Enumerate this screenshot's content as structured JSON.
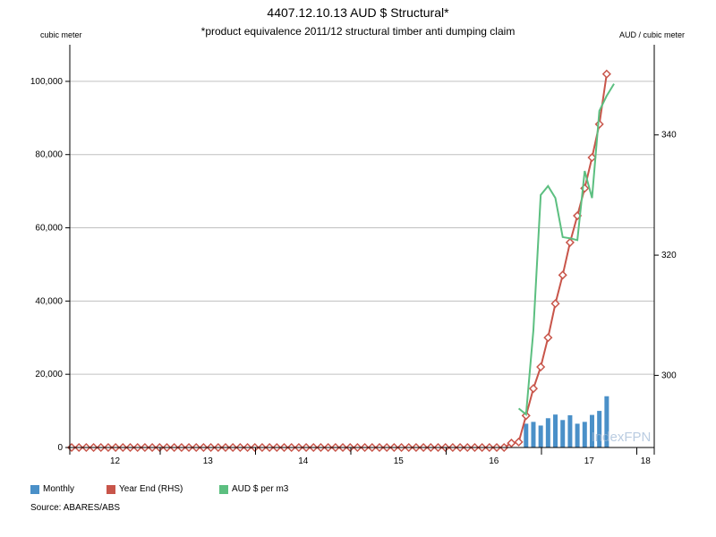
{
  "chart_data": {
    "type": "bar+line",
    "title": "4407.12.10.13 AUD $ Structural*",
    "subtitle": "*product equivalence 2011/12 structural timber anti dumping claim",
    "left_axis_label": "cubic meter",
    "right_axis_label": "AUD / cubic meter",
    "ylim_left": [
      0,
      110000
    ],
    "ylim_right": [
      288,
      355
    ],
    "left_ticks": [
      {
        "value": 0,
        "label": "0"
      },
      {
        "value": 20000,
        "label": "20,000"
      },
      {
        "value": 40000,
        "label": "40,000"
      },
      {
        "value": 60000,
        "label": "60,000"
      },
      {
        "value": 80000,
        "label": "80,000"
      },
      {
        "value": 100000,
        "label": "100,000"
      }
    ],
    "right_ticks": [
      {
        "value": 300,
        "label": "300"
      },
      {
        "value": 320,
        "label": "320"
      },
      {
        "value": 340,
        "label": "340"
      }
    ],
    "x_year_labels": [
      "12",
      "13",
      "14",
      "15",
      "16",
      "17",
      "18"
    ],
    "x_range": [
      "2011-07",
      "2018-02"
    ],
    "grid": "horizontal",
    "watermark": "IndexFPN",
    "series": [
      {
        "name": "Monthly",
        "type": "bar",
        "axis": "left",
        "color": "#4a90c8",
        "points": [
          [
            "2016-09",
            6500
          ],
          [
            "2016-10",
            7000
          ],
          [
            "2016-11",
            6000
          ],
          [
            "2016-12",
            8000
          ],
          [
            "2017-01",
            9000
          ],
          [
            "2017-02",
            7500
          ],
          [
            "2017-03",
            8800
          ],
          [
            "2017-04",
            6500
          ],
          [
            "2017-05",
            7000
          ],
          [
            "2017-06",
            8900
          ],
          [
            "2017-07",
            10000
          ],
          [
            "2017-08",
            14000
          ]
        ]
      },
      {
        "name": "Year End (RHS)",
        "type": "line",
        "axis": "left",
        "color": "#c8554a",
        "start": "2011-07",
        "values": [
          0,
          0,
          0,
          0,
          0,
          0,
          0,
          0,
          0,
          0,
          0,
          0,
          0,
          0,
          0,
          0,
          0,
          0,
          0,
          0,
          0,
          0,
          0,
          0,
          0,
          0,
          0,
          0,
          0,
          0,
          0,
          0,
          0,
          0,
          0,
          0,
          0,
          0,
          0,
          0,
          0,
          0,
          0,
          0,
          0,
          0,
          0,
          0,
          0,
          0,
          0,
          0,
          0,
          0,
          0,
          0,
          0,
          0,
          0,
          0,
          1200,
          1500,
          8700,
          16100,
          22000,
          30000,
          39300,
          47100,
          56000,
          63300,
          70800,
          79200,
          88300,
          102000
        ]
      },
      {
        "name": "AUD $ per m3",
        "type": "line",
        "axis": "right",
        "color": "#5cbf80",
        "points": [
          [
            "2016-08",
            294.5
          ],
          [
            "2016-09",
            293.5
          ],
          [
            "2016-10",
            307.5
          ],
          [
            "2016-11",
            330
          ],
          [
            "2016-12",
            331.5
          ],
          [
            "2017-01",
            329.5
          ],
          [
            "2017-02",
            323
          ],
          [
            "2017-03",
            322.8
          ],
          [
            "2017-04",
            322.5
          ],
          [
            "2017-05",
            334
          ],
          [
            "2017-06",
            329.5
          ],
          [
            "2017-07",
            344
          ],
          [
            "2017-08",
            346.5
          ],
          [
            "2017-09",
            348.5
          ]
        ]
      }
    ]
  },
  "legend": [
    {
      "label": "Monthly",
      "color": "#4a90c8"
    },
    {
      "label": "Year End (RHS)",
      "color": "#c8554a"
    },
    {
      "label": "AUD $ per m3",
      "color": "#5cbf80"
    }
  ],
  "source": "Source: ABARES/ABS"
}
